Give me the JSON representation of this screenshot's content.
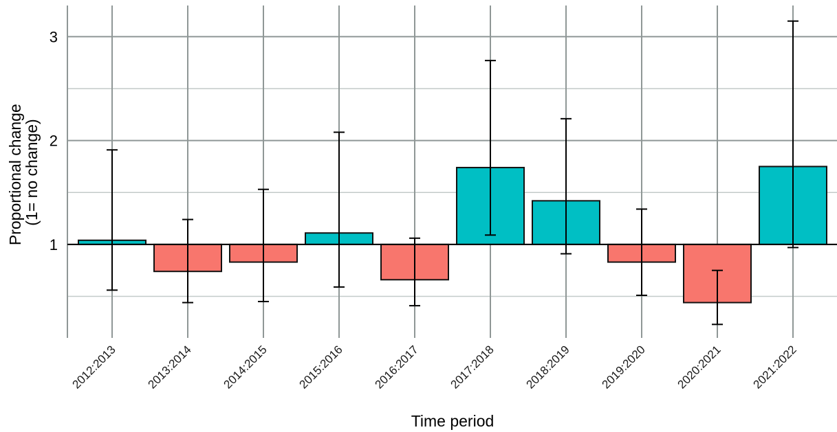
{
  "chart_data": {
    "type": "bar",
    "xlabel": "Time period",
    "ylabel_lines": [
      "Proportional change",
      "(1= no change)"
    ],
    "baseline": 1,
    "ylim": [
      0.1,
      3.3
    ],
    "yticks": [
      1,
      2,
      3
    ],
    "ytick_labels": [
      "1",
      "2",
      "3"
    ],
    "yminor_ticks": [
      0.5,
      1.5,
      2.5
    ],
    "grid": true,
    "categories": [
      "2012:2013",
      "2013:2014",
      "2014:2015",
      "2015:2016",
      "2016:2017",
      "2017:2018",
      "2018:2019",
      "2019:2020",
      "2020:2021",
      "2021:2022"
    ],
    "values": [
      1.04,
      0.74,
      0.83,
      1.11,
      0.66,
      1.74,
      1.42,
      0.83,
      0.44,
      1.75
    ],
    "error_low": [
      0.56,
      0.44,
      0.45,
      0.59,
      0.41,
      1.09,
      0.91,
      0.51,
      0.23,
      0.97
    ],
    "error_high": [
      1.91,
      1.24,
      1.53,
      2.08,
      1.06,
      2.77,
      2.21,
      1.34,
      0.75,
      3.15
    ],
    "colors": {
      "increase": "#00bfc4",
      "decrease": "#f8766d"
    }
  }
}
